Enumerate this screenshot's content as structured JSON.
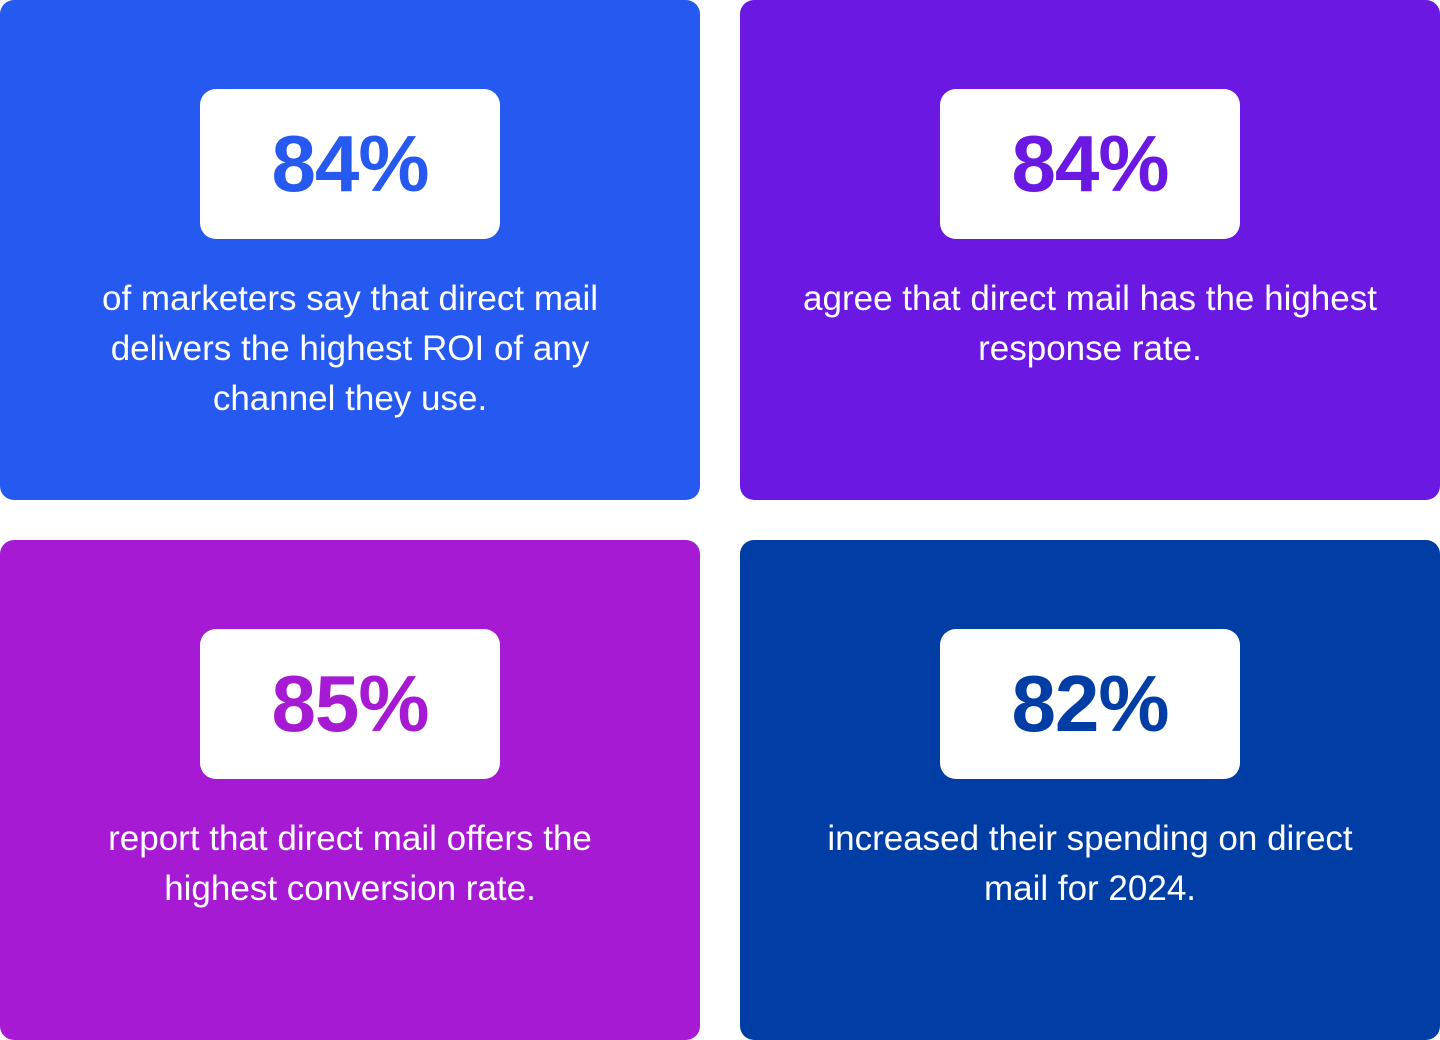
{
  "cards": [
    {
      "stat": "84%",
      "text": "of marketers say that direct mail delivers the highest ROI of any channel they use.",
      "color": "#2659F0"
    },
    {
      "stat": "84%",
      "text": "agree that direct mail has the highest response rate.",
      "color": "#6A18E2"
    },
    {
      "stat": "85%",
      "text": "report that direct mail offers the highest conversion rate.",
      "color": "#A51AD2"
    },
    {
      "stat": "82%",
      "text": "increased their spending on direct mail for 2024.",
      "color": "#003DA5"
    }
  ]
}
